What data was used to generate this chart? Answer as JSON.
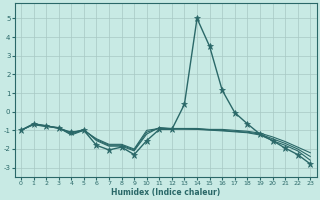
{
  "xlabel": "Humidex (Indice chaleur)",
  "xlim": [
    -0.5,
    23.5
  ],
  "ylim": [
    -3.5,
    5.8
  ],
  "yticks": [
    -3,
    -2,
    -1,
    0,
    1,
    2,
    3,
    4,
    5
  ],
  "xticks": [
    0,
    1,
    2,
    3,
    4,
    5,
    6,
    7,
    8,
    9,
    10,
    11,
    12,
    13,
    14,
    15,
    16,
    17,
    18,
    19,
    20,
    21,
    22,
    23
  ],
  "background_color": "#c8eae4",
  "grid_color": "#a8c8c4",
  "line_color": "#2a6868",
  "lines": [
    {
      "x": [
        0,
        1,
        2,
        3,
        4,
        5,
        6,
        7,
        8,
        9,
        10,
        11,
        12,
        13,
        14,
        15,
        16,
        17,
        18,
        19,
        20,
        21,
        22,
        23
      ],
      "y": [
        -1.0,
        -0.65,
        -0.75,
        -0.9,
        -1.1,
        -1.0,
        -1.8,
        -2.05,
        -1.9,
        -2.3,
        -1.55,
        -0.95,
        -0.95,
        0.4,
        5.0,
        3.5,
        1.15,
        -0.05,
        -0.65,
        -1.2,
        -1.55,
        -1.95,
        -2.3,
        -2.8
      ],
      "marker": "*",
      "markersize": 4.5,
      "linewidth": 1.0
    },
    {
      "x": [
        0,
        1,
        2,
        3,
        4,
        5,
        6,
        7,
        8,
        9,
        10,
        11,
        12,
        13,
        14,
        15,
        16,
        17,
        18,
        19,
        20,
        21,
        22,
        23
      ],
      "y": [
        -1.0,
        -0.7,
        -0.8,
        -0.85,
        -1.15,
        -0.95,
        -1.55,
        -1.85,
        -1.85,
        -2.1,
        -1.2,
        -0.85,
        -0.9,
        -0.9,
        -0.9,
        -0.95,
        -0.95,
        -1.0,
        -1.05,
        -1.15,
        -1.35,
        -1.6,
        -1.9,
        -2.2
      ],
      "marker": null,
      "markersize": 0,
      "linewidth": 0.8
    },
    {
      "x": [
        0,
        1,
        2,
        3,
        4,
        5,
        6,
        7,
        8,
        9,
        10,
        11,
        12,
        13,
        14,
        15,
        16,
        17,
        18,
        19,
        20,
        21,
        22,
        23
      ],
      "y": [
        -1.0,
        -0.68,
        -0.78,
        -0.88,
        -1.2,
        -0.98,
        -1.5,
        -1.8,
        -1.8,
        -2.05,
        -1.1,
        -0.88,
        -0.92,
        -0.92,
        -0.93,
        -0.97,
        -1.0,
        -1.05,
        -1.1,
        -1.2,
        -1.45,
        -1.7,
        -2.0,
        -2.4
      ],
      "marker": null,
      "markersize": 0,
      "linewidth": 0.8
    },
    {
      "x": [
        0,
        1,
        2,
        3,
        4,
        5,
        6,
        7,
        8,
        9,
        10,
        11,
        12,
        13,
        14,
        15,
        16,
        17,
        18,
        19,
        20,
        21,
        22,
        23
      ],
      "y": [
        -1.0,
        -0.66,
        -0.76,
        -0.86,
        -1.25,
        -1.0,
        -1.45,
        -1.75,
        -1.75,
        -2.0,
        -1.0,
        -0.9,
        -0.94,
        -0.94,
        -0.95,
        -0.99,
        -1.03,
        -1.08,
        -1.13,
        -1.25,
        -1.55,
        -1.8,
        -2.1,
        -2.6
      ],
      "marker": null,
      "markersize": 0,
      "linewidth": 0.8
    }
  ]
}
